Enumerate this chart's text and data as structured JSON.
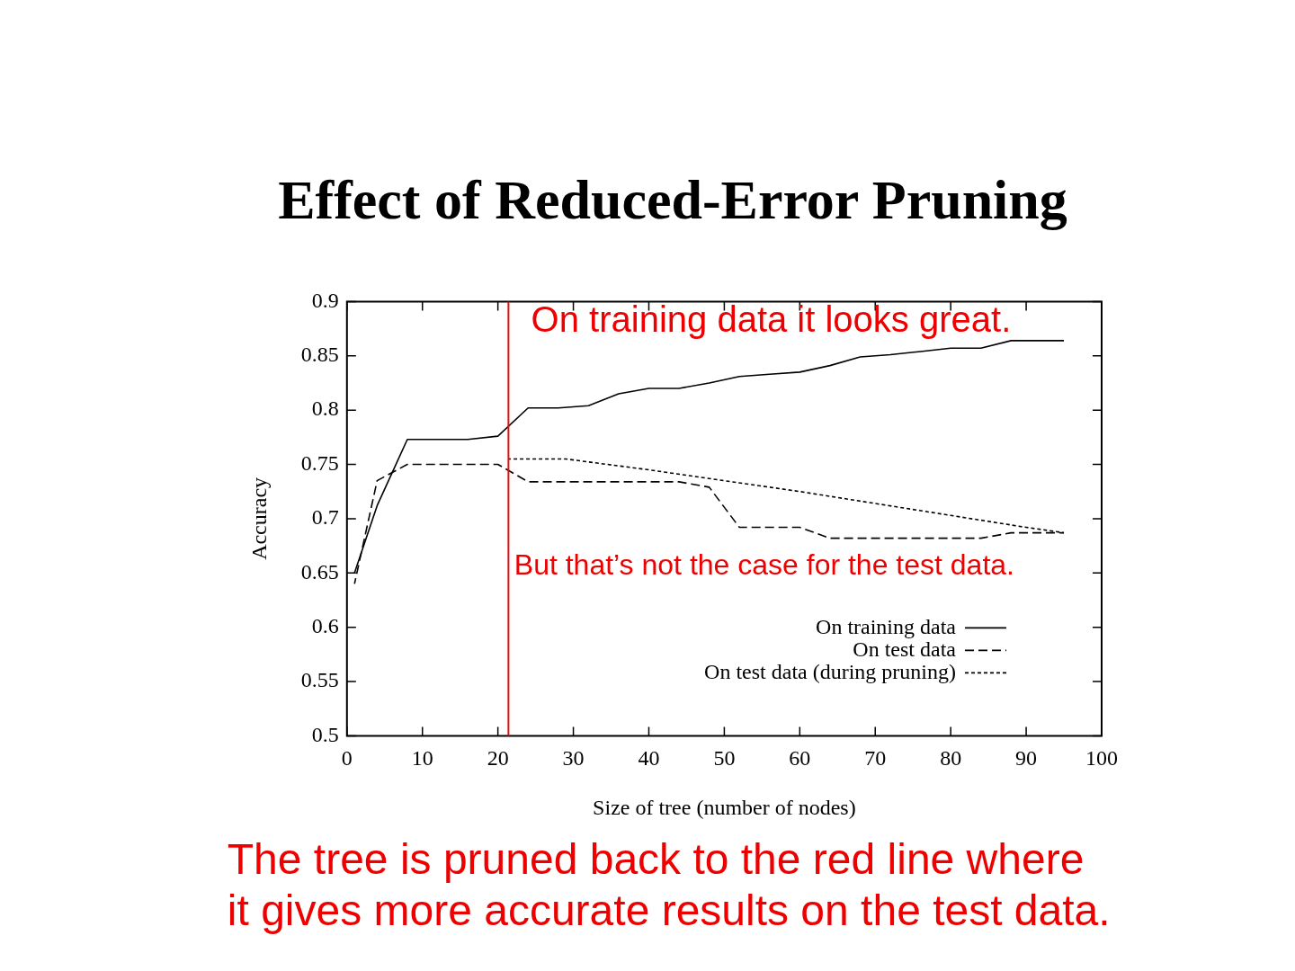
{
  "chart_data": {
    "type": "line",
    "title": "Effect of Reduced-Error Pruning",
    "xlabel": "Size of tree (number of nodes)",
    "ylabel": "Accuracy",
    "xlim": [
      0,
      100
    ],
    "xticks": [
      0,
      10,
      20,
      30,
      40,
      50,
      60,
      70,
      80,
      90,
      100
    ],
    "ylim": [
      0.5,
      0.9
    ],
    "yticks": [
      0.5,
      0.55,
      0.6,
      0.65,
      0.7,
      0.75,
      0.8,
      0.85,
      0.9
    ],
    "grid": false,
    "legend": "bottom right",
    "series": [
      {
        "name": "On training data",
        "color": "#000000",
        "line_style": "solid",
        "x": [
          1,
          4,
          8,
          16,
          20,
          24,
          28,
          32,
          36,
          40,
          44,
          48,
          52,
          56,
          60,
          64,
          68,
          72,
          76,
          80,
          84,
          88,
          95
        ],
        "values": [
          0.65,
          0.712,
          0.773,
          0.773,
          0.776,
          0.802,
          0.802,
          0.804,
          0.815,
          0.82,
          0.82,
          0.825,
          0.831,
          0.833,
          0.835,
          0.841,
          0.849,
          0.851,
          0.854,
          0.857,
          0.857,
          0.864,
          0.864
        ]
      },
      {
        "name": "On test data",
        "color": "#000000",
        "line_style": "dashed",
        "x": [
          1,
          4,
          8,
          20,
          24,
          44,
          48,
          52,
          60,
          64,
          84,
          88,
          95
        ],
        "values": [
          0.64,
          0.735,
          0.75,
          0.75,
          0.734,
          0.734,
          0.729,
          0.692,
          0.692,
          0.682,
          0.682,
          0.687,
          0.687
        ]
      },
      {
        "name": "On test data (during pruning)",
        "color": "#000000",
        "line_style": "dotted",
        "x": [
          21.4,
          29,
          40,
          50,
          60,
          70,
          80,
          90,
          95
        ],
        "values": [
          0.755,
          0.755,
          0.745,
          0.735,
          0.725,
          0.714,
          0.703,
          0.692,
          0.687
        ]
      }
    ],
    "ref_lines": [
      {
        "axis": "x",
        "value": 21.4,
        "color": "#dd1111"
      }
    ],
    "annotations": [
      "On training data it looks great.",
      "But that’s not the case for the test data.",
      "The tree is pruned back to the red line where\nit gives more accurate results on the test data."
    ]
  }
}
